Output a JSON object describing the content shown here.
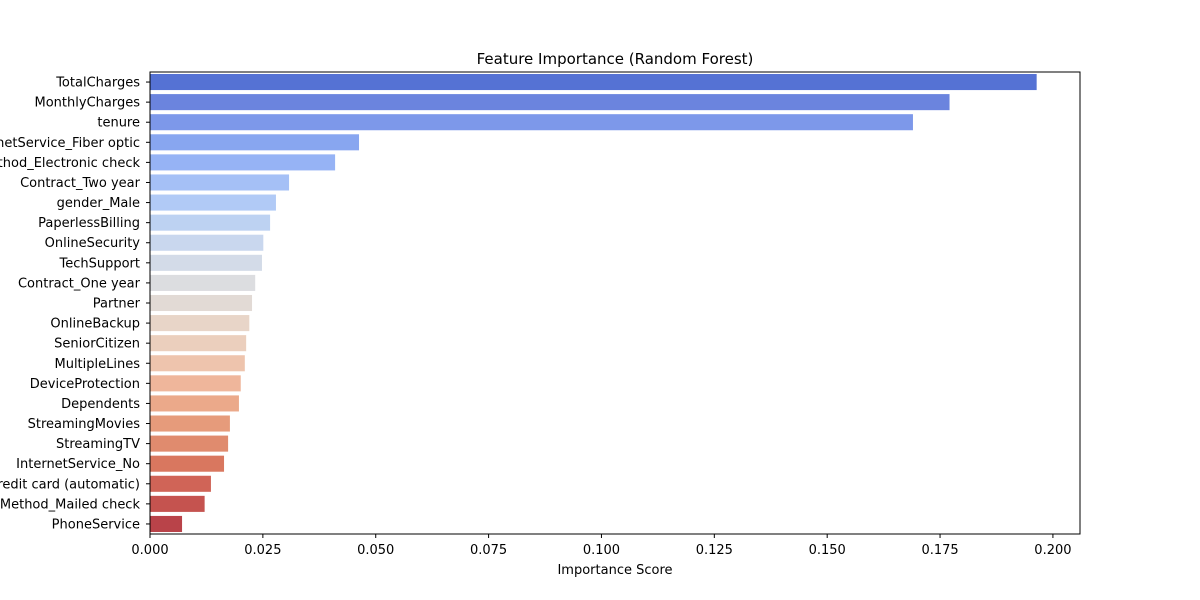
{
  "chart_data": {
    "type": "bar",
    "orientation": "horizontal",
    "title": "Feature Importance (Random Forest)",
    "xlabel": "Importance Score",
    "ylabel": "",
    "xlim": [
      0,
      0.206
    ],
    "xticks": [
      "0.000",
      "0.025",
      "0.050",
      "0.075",
      "0.100",
      "0.125",
      "0.150",
      "0.175",
      "0.200"
    ],
    "grid": false,
    "palette": "coolwarm",
    "categories": [
      "TotalCharges",
      "MonthlyCharges",
      "tenure",
      "InternetService_Fiber optic",
      "PaymentMethod_Electronic check",
      "Contract_Two year",
      "gender_Male",
      "PaperlessBilling",
      "OnlineSecurity",
      "TechSupport",
      "Contract_One year",
      "Partner",
      "OnlineBackup",
      "SeniorCitizen",
      "MultipleLines",
      "DeviceProtection",
      "Dependents",
      "StreamingMovies",
      "StreamingTV",
      "InternetService_No",
      "PaymentMethod_Credit card (automatic)",
      "PaymentMethod_Mailed check",
      "PhoneService"
    ],
    "values": [
      0.1964,
      0.1771,
      0.169,
      0.0463,
      0.041,
      0.0308,
      0.0279,
      0.0266,
      0.0251,
      0.0248,
      0.0233,
      0.0226,
      0.022,
      0.0213,
      0.021,
      0.0201,
      0.0197,
      0.0177,
      0.0173,
      0.0164,
      0.0135,
      0.0121,
      0.0071
    ],
    "colors": [
      "#5572d4",
      "#6b84de",
      "#7d98ea",
      "#88a6f0",
      "#96b3f5",
      "#a5c0f6",
      "#b1caf6",
      "#bdd2f2",
      "#c9d7ee",
      "#d3dbe8",
      "#dcdde0",
      "#e2dad5",
      "#e8d5c8",
      "#ebcfbd",
      "#eec4ad",
      "#efb69b",
      "#eba98a",
      "#e69b7b",
      "#e08b6e",
      "#d9775f",
      "#d06457",
      "#c5534f",
      "#b94349"
    ]
  }
}
